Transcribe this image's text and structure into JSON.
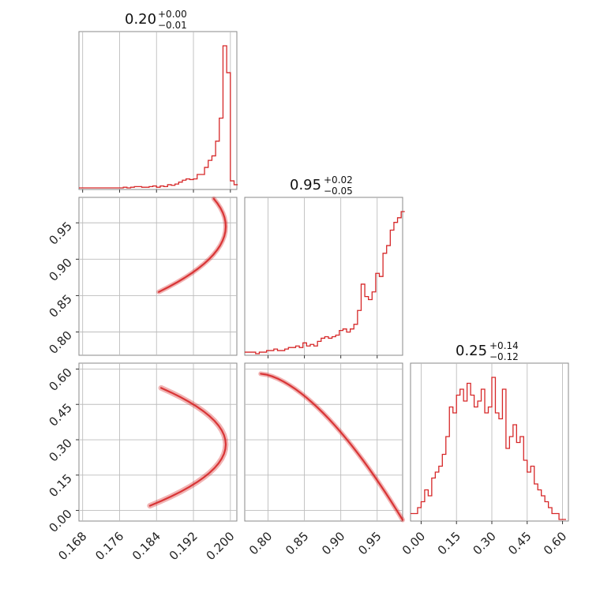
{
  "chart_data": [
    {
      "type": "histogram",
      "panel": "diag-1",
      "title": "0.20",
      "title_err_plus": "+0.00",
      "title_err_minus": "−0.01",
      "xlim": [
        0.1672,
        0.2014
      ],
      "bins_x": [
        0.1672,
        0.168,
        0.1688,
        0.1696,
        0.1704,
        0.1712,
        0.172,
        0.1728,
        0.1736,
        0.1744,
        0.1752,
        0.176,
        0.1768,
        0.1776,
        0.1784,
        0.1792,
        0.18,
        0.1808,
        0.1816,
        0.1824,
        0.1832,
        0.184,
        0.1848,
        0.1856,
        0.1864,
        0.1872,
        0.188,
        0.1888,
        0.1896,
        0.1904,
        0.1912,
        0.192,
        0.1928,
        0.1936,
        0.1944,
        0.1952,
        0.196,
        0.1968,
        0.1976,
        0.1984,
        0.1992,
        0.2,
        0.2008
      ],
      "counts": [
        0,
        0,
        0,
        0,
        0,
        0,
        0,
        0,
        0,
        0,
        0,
        0,
        1,
        0,
        1,
        2,
        2,
        1,
        1,
        2,
        3,
        1,
        3,
        2,
        5,
        4,
        6,
        9,
        12,
        14,
        13,
        14,
        21,
        21,
        32,
        43,
        50,
        73,
        109,
        222,
        180,
        11,
        5
      ],
      "tick_labels": [],
      "color": "#d62728"
    },
    {
      "type": "contour",
      "panel": "row2-col1",
      "xlim": [
        0.1672,
        0.2014
      ],
      "ylim": [
        0.768,
        0.985
      ],
      "y_tick_values": [
        0.8,
        0.85,
        0.9,
        0.95
      ],
      "y_tick_labels": [
        "0.80",
        "0.85",
        "0.90",
        "0.95"
      ],
      "color": "#d62728"
    },
    {
      "type": "histogram",
      "panel": "diag-2",
      "title": "0.95",
      "title_err_plus": "+0.02",
      "title_err_minus": "−0.05",
      "xlim": [
        0.768,
        0.985
      ],
      "bins_x": [
        0.768,
        0.773,
        0.778,
        0.783,
        0.788,
        0.793,
        0.798,
        0.803,
        0.808,
        0.813,
        0.818,
        0.823,
        0.828,
        0.833,
        0.838,
        0.843,
        0.848,
        0.853,
        0.858,
        0.863,
        0.868,
        0.873,
        0.878,
        0.883,
        0.888,
        0.893,
        0.898,
        0.903,
        0.908,
        0.913,
        0.918,
        0.923,
        0.928,
        0.933,
        0.938,
        0.943,
        0.948,
        0.953,
        0.958,
        0.963,
        0.968,
        0.973,
        0.978,
        0.983
      ],
      "counts": [
        1,
        1,
        1,
        0,
        1,
        1,
        2,
        2,
        3,
        2,
        2,
        3,
        4,
        4,
        5,
        4,
        7,
        5,
        6,
        5,
        8,
        10,
        11,
        10,
        11,
        12,
        15,
        16,
        14,
        16,
        19,
        28,
        45,
        37,
        35,
        40,
        52,
        50,
        65,
        70,
        80,
        85,
        88,
        92
      ],
      "tick_labels": [],
      "color": "#d62728"
    },
    {
      "type": "contour",
      "panel": "row3-col1",
      "xlim": [
        0.1672,
        0.2014
      ],
      "ylim": [
        -0.045,
        0.625
      ],
      "x_tick_values": [
        0.168,
        0.176,
        0.184,
        0.192,
        0.2
      ],
      "x_tick_labels": [
        "0.168",
        "0.176",
        "0.184",
        "0.192",
        "0.200"
      ],
      "y_tick_values": [
        0.0,
        0.15,
        0.3,
        0.45,
        0.6
      ],
      "y_tick_labels": [
        "0.00",
        "0.15",
        "0.30",
        "0.45",
        "0.60"
      ],
      "color": "#d62728"
    },
    {
      "type": "contour",
      "panel": "row3-col2",
      "xlim": [
        0.768,
        0.985
      ],
      "ylim": [
        -0.045,
        0.625
      ],
      "x_tick_values": [
        0.8,
        0.85,
        0.9,
        0.95
      ],
      "x_tick_labels": [
        "0.80",
        "0.85",
        "0.90",
        "0.95"
      ],
      "color": "#d62728"
    },
    {
      "type": "histogram",
      "panel": "diag-3",
      "title": "0.25",
      "title_err_plus": "+0.14",
      "title_err_minus": "−0.12",
      "xlim": [
        -0.045,
        0.625
      ],
      "bins_x": [
        -0.045,
        -0.03,
        -0.015,
        0.0,
        0.015,
        0.03,
        0.045,
        0.06,
        0.075,
        0.09,
        0.105,
        0.12,
        0.135,
        0.15,
        0.165,
        0.18,
        0.195,
        0.21,
        0.225,
        0.24,
        0.255,
        0.27,
        0.285,
        0.3,
        0.315,
        0.33,
        0.345,
        0.36,
        0.375,
        0.39,
        0.405,
        0.42,
        0.435,
        0.45,
        0.465,
        0.48,
        0.495,
        0.51,
        0.525,
        0.54,
        0.555,
        0.57,
        0.585,
        0.6
      ],
      "counts": [
        1,
        1,
        2,
        3,
        5,
        4,
        7,
        8,
        9,
        11,
        14,
        19,
        18,
        21,
        22,
        20,
        23,
        21,
        19,
        20,
        22,
        18,
        19,
        24,
        18,
        17,
        22,
        12,
        14,
        16,
        13,
        14,
        10,
        8,
        9,
        6,
        5,
        4,
        3,
        2,
        1,
        1,
        0,
        0
      ],
      "x_tick_values": [
        0.0,
        0.15,
        0.3,
        0.45,
        0.6
      ],
      "x_tick_labels": [
        "0.00",
        "0.15",
        "0.30",
        "0.45",
        "0.60"
      ],
      "tick_labels": [],
      "color": "#d62728"
    }
  ]
}
